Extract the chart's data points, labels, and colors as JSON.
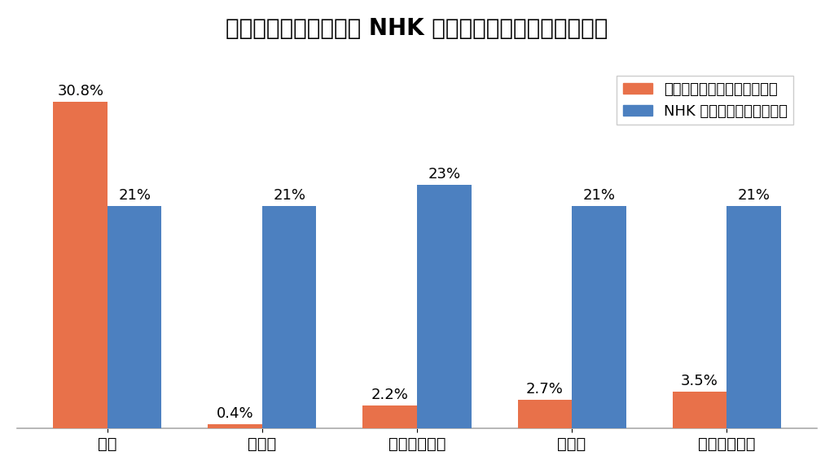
{
  "title": "不登校の要因に関する NHK 調査と文科省調査の回答比較",
  "categories": [
    "家庭",
    "いじめ",
    "教員との関係",
    "部活動",
    "決まりや校則"
  ],
  "monka_values": [
    30.8,
    0.4,
    2.2,
    2.7,
    3.5
  ],
  "nhk_values": [
    21,
    21,
    23,
    21,
    21
  ],
  "monka_labels": [
    "30.8%",
    "0.4%",
    "2.2%",
    "2.7%",
    "3.5%"
  ],
  "nhk_labels": [
    "21%",
    "21%",
    "23%",
    "21%",
    "21%"
  ],
  "monka_color": "#E8714A",
  "nhk_color": "#4C80C0",
  "legend_monka": "文科省調査（教員らが回答）",
  "legend_nhk": "NHK 調査（子どもが回答）",
  "background_color": "#FFFFFF",
  "ylim": [
    0,
    35
  ],
  "bar_width": 0.35,
  "title_fontsize": 20,
  "label_fontsize": 13,
  "tick_fontsize": 14,
  "legend_fontsize": 13
}
